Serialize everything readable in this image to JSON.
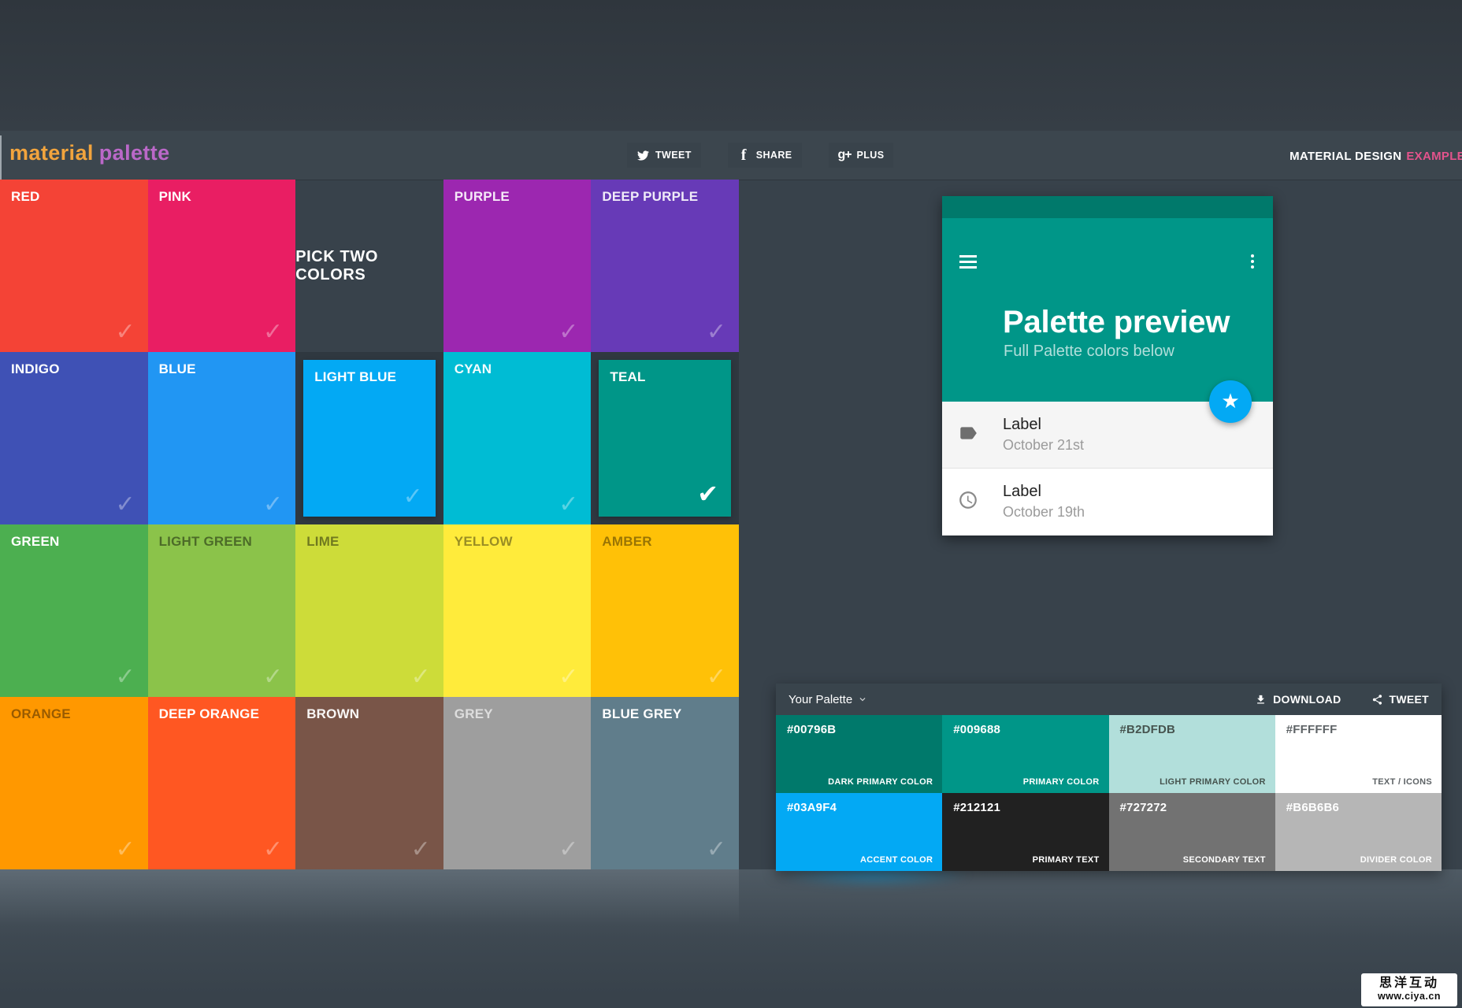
{
  "header": {
    "logo_part1": "material",
    "logo_part2": "palette",
    "logo_color1": "#F2A43D",
    "logo_color2": "#BA68C8",
    "buttons": [
      {
        "id": "tweet",
        "label": "TWEET",
        "icon": "twitter-icon"
      },
      {
        "id": "share",
        "label": "SHARE",
        "icon": "facebook-icon"
      },
      {
        "id": "plus",
        "label": "PLUS",
        "icon": "googleplus-icon"
      }
    ],
    "right_text_primary": "MATERIAL DESIGN",
    "right_text_accent": "EXAMPLE",
    "accent_color": "#E3538C"
  },
  "grid": {
    "pick_two_label": "PICK TWO COLORS",
    "tiles": [
      {
        "name": "RED",
        "color": "#F44336",
        "label_color": "#FFFFFF",
        "check": "faint",
        "selected": false
      },
      {
        "name": "PINK",
        "color": "#E91E63",
        "label_color": "#FFFFFF",
        "check": "faint",
        "selected": false
      },
      {
        "type": "label_cell"
      },
      {
        "name": "PURPLE",
        "color": "#9C27B0",
        "label_color": "rgba(255,255,255,0.9)",
        "check": "faint",
        "selected": false
      },
      {
        "name": "DEEP PURPLE",
        "color": "#673AB7",
        "label_color": "rgba(255,255,255,0.9)",
        "check": "faint",
        "selected": false
      },
      {
        "name": "INDIGO",
        "color": "#3F51B5",
        "label_color": "#FFFFFF",
        "check": "faint",
        "selected": false
      },
      {
        "name": "BLUE",
        "color": "#2196F3",
        "label_color": "#FFFFFF",
        "check": "faint",
        "selected": false
      },
      {
        "name": "LIGHT BLUE",
        "color": "#03A9F4",
        "label_color": "#FFFFFF",
        "check": "faint",
        "selected": true
      },
      {
        "name": "CYAN",
        "color": "#00BCD4",
        "label_color": "rgba(255,255,255,0.95)",
        "check": "faint",
        "selected": false
      },
      {
        "name": "TEAL",
        "color": "#009688",
        "label_color": "#FFFFFF",
        "check": "strong",
        "selected": true
      },
      {
        "name": "GREEN",
        "color": "#4CAF50",
        "label_color": "#FFFFFF",
        "check": "faint",
        "selected": false
      },
      {
        "name": "LIGHT GREEN",
        "color": "#8BC34A",
        "label_color": "rgba(0,0,0,0.45)",
        "check": "faint",
        "selected": false
      },
      {
        "name": "LIME",
        "color": "#CDDC39",
        "label_color": "rgba(0,0,0,0.45)",
        "check": "faint",
        "selected": false
      },
      {
        "name": "YELLOW",
        "color": "#FFEB3B",
        "label_color": "rgba(0,0,0,0.40)",
        "check": "faint",
        "selected": false
      },
      {
        "name": "AMBER",
        "color": "#FFC107",
        "label_color": "rgba(0,0,0,0.40)",
        "check": "faint",
        "selected": false
      },
      {
        "name": "ORANGE",
        "color": "#FF9800",
        "label_color": "rgba(0,0,0,0.40)",
        "check": "faint",
        "selected": false
      },
      {
        "name": "DEEP ORANGE",
        "color": "#FF5722",
        "label_color": "#FFFFFF",
        "check": "faint",
        "selected": false
      },
      {
        "name": "BROWN",
        "color": "#795548",
        "label_color": "rgba(255,255,255,0.95)",
        "check": "faint",
        "selected": false
      },
      {
        "name": "GREY",
        "color": "#9E9E9E",
        "label_color": "rgba(255,255,255,0.65)",
        "check": "faint",
        "selected": false
      },
      {
        "name": "BLUE GREY",
        "color": "#607D8B",
        "label_color": "#FFFFFF",
        "check": "faint",
        "selected": false
      }
    ]
  },
  "preview_card": {
    "statusbar_color": "#00796B",
    "header_color": "#009688",
    "title": "Palette preview",
    "subtitle": "Full Palette colors below",
    "subtitle_color": "#B2DFDB",
    "fab_color": "#03A9F4",
    "list_items": [
      {
        "icon": "tag-icon",
        "title": "Label",
        "subtitle": "October 21st"
      },
      {
        "icon": "clock-icon",
        "title": "Label",
        "subtitle": "October 19th"
      }
    ]
  },
  "palette_panel": {
    "title": "Your Palette",
    "header_bg": "#39444C",
    "actions": [
      {
        "id": "download",
        "label": "DOWNLOAD",
        "icon": "download-icon"
      },
      {
        "id": "tweet",
        "label": "TWEET",
        "icon": "share-icon"
      }
    ],
    "swatches": [
      {
        "hex": "#00796B",
        "role": "DARK PRIMARY COLOR",
        "text_color": "#FFFFFF"
      },
      {
        "hex": "#009688",
        "role": "PRIMARY COLOR",
        "text_color": "#FFFFFF"
      },
      {
        "hex": "#B2DFDB",
        "role": "LIGHT PRIMARY COLOR",
        "text_color": "#46544F"
      },
      {
        "hex": "#FFFFFF",
        "role": "TEXT / ICONS",
        "text_color": "#5E6366"
      },
      {
        "hex": "#03A9F4",
        "role": "ACCENT COLOR",
        "text_color": "#FFFFFF"
      },
      {
        "hex": "#212121",
        "role": "PRIMARY TEXT",
        "text_color": "#FFFFFF"
      },
      {
        "hex": "#727272",
        "role": "SECONDARY TEXT",
        "text_color": "#FFFFFF"
      },
      {
        "hex": "#B6B6B6",
        "role": "DIVIDER COLOR",
        "text_color": "#FFFFFF"
      }
    ]
  },
  "watermark": {
    "line1": "思洋互动",
    "line2": "www.ciya.cn"
  }
}
